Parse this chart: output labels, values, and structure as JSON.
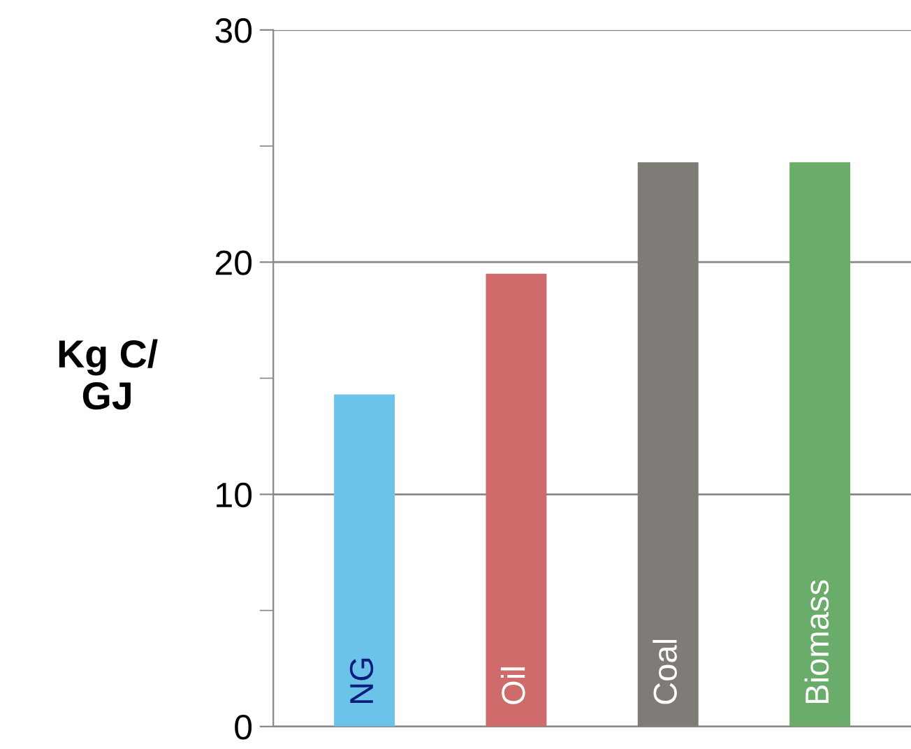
{
  "chart_data": {
    "type": "bar",
    "ylabel": "Kg C/\nGJ",
    "categories": [
      "NG",
      "Oil",
      "Coal",
      "Biomass"
    ],
    "values": [
      14.3,
      19.5,
      24.3,
      24.3
    ],
    "colors": [
      "#6cc3ea",
      "#d06b6b",
      "#7f7c78",
      "#6aac6a"
    ],
    "ylim": [
      0,
      30
    ],
    "yticks": [
      0,
      {
        "value": 5,
        "label": null
      },
      10,
      {
        "value": 15,
        "label": null
      },
      20,
      {
        "value": 25,
        "label": null
      },
      30
    ],
    "grid": "y",
    "tick_labels": "y"
  }
}
